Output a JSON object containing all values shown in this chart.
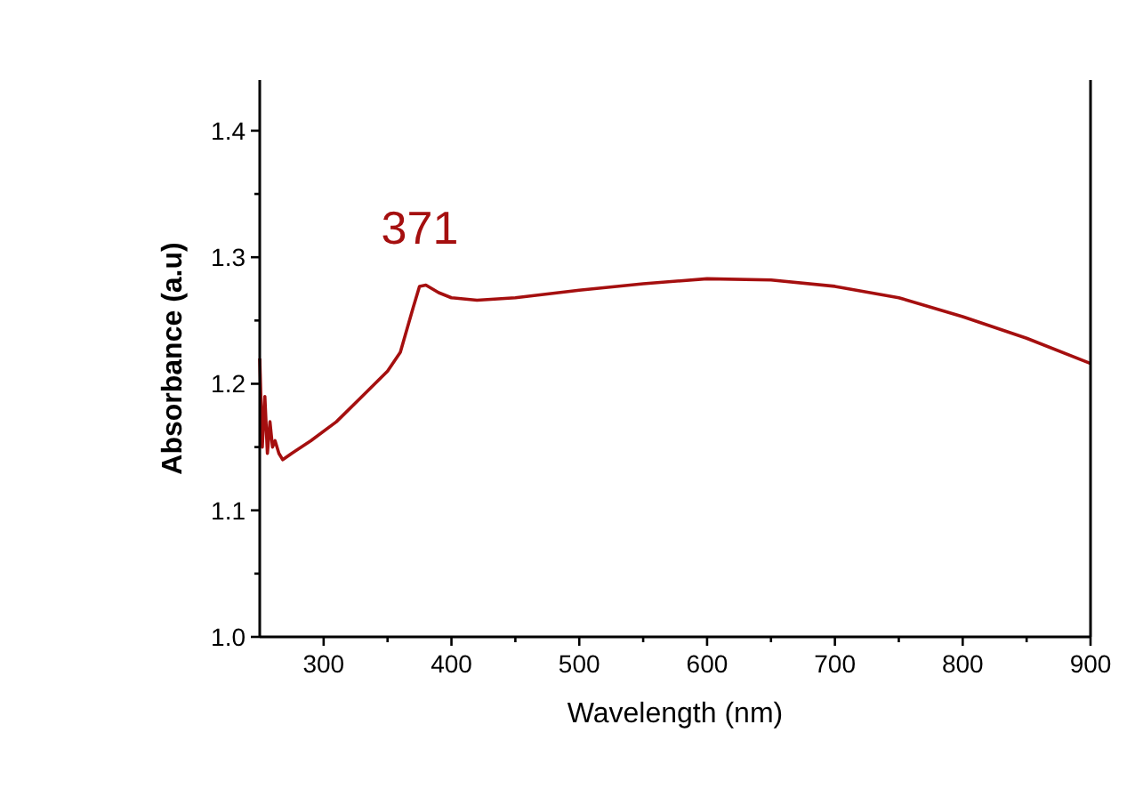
{
  "chart_data": {
    "type": "line",
    "xlabel": "Wavelength (nm)",
    "ylabel": "Absorbance (a.u)",
    "x": [
      250,
      252,
      254,
      256,
      258,
      260,
      262,
      265,
      268,
      275,
      290,
      310,
      330,
      350,
      360,
      370,
      375,
      380,
      390,
      400,
      420,
      450,
      500,
      550,
      600,
      650,
      700,
      750,
      800,
      850,
      900
    ],
    "series": [
      {
        "color": "#a50f0f",
        "values": [
          1.22,
          1.15,
          1.19,
          1.145,
          1.17,
          1.15,
          1.155,
          1.145,
          1.14,
          1.145,
          1.155,
          1.17,
          1.19,
          1.21,
          1.225,
          1.26,
          1.277,
          1.278,
          1.272,
          1.268,
          1.266,
          1.268,
          1.274,
          1.279,
          1.283,
          1.282,
          1.277,
          1.268,
          1.253,
          1.236,
          1.216
        ]
      }
    ],
    "xlim": [
      250,
      900
    ],
    "xticks": [
      300,
      {
        "value": 350,
        "label": null
      },
      400,
      {
        "value": 450,
        "label": null
      },
      500,
      {
        "value": 550,
        "label": null
      },
      600,
      {
        "value": 650,
        "label": null
      },
      700,
      {
        "value": 750,
        "label": null
      },
      800,
      {
        "value": 850,
        "label": null
      },
      900
    ],
    "ylim": [
      1.0,
      1.44
    ],
    "yticks": [
      {
        "value": 1.0,
        "label": "1.0"
      },
      {
        "value": 1.05,
        "label": null
      },
      1.1,
      {
        "value": 1.15,
        "label": null
      },
      1.2,
      {
        "value": 1.25,
        "label": null
      },
      1.3,
      {
        "value": 1.35,
        "label": null
      },
      1.4
    ],
    "annotations": [
      "371"
    ],
    "grid": false,
    "marker": "none",
    "line_style": "solid"
  }
}
